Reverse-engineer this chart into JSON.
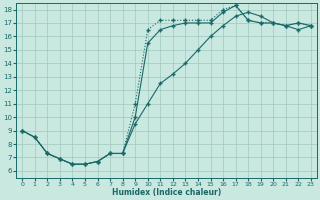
{
  "xlabel": "Humidex (Indice chaleur)",
  "bg_color": "#c8e8e0",
  "grid_color": "#a0c8c0",
  "line_color": "#1a6868",
  "xlim": [
    -0.5,
    23.5
  ],
  "ylim": [
    5.5,
    18.5
  ],
  "xticks": [
    0,
    1,
    2,
    3,
    4,
    5,
    6,
    7,
    8,
    9,
    10,
    11,
    12,
    13,
    14,
    15,
    16,
    17,
    18,
    19,
    20,
    21,
    22,
    23
  ],
  "yticks": [
    6,
    7,
    8,
    9,
    10,
    11,
    12,
    13,
    14,
    15,
    16,
    17,
    18
  ],
  "line1_x": [
    0,
    1,
    2,
    3,
    4,
    5,
    6,
    7,
    8,
    9,
    10,
    11,
    12,
    13,
    14,
    15,
    16,
    17,
    18,
    19,
    20,
    21,
    22,
    23
  ],
  "line1_y": [
    9.0,
    8.5,
    7.3,
    6.9,
    6.5,
    6.5,
    6.7,
    7.3,
    7.3,
    11.0,
    16.5,
    17.2,
    17.2,
    17.2,
    17.2,
    17.2,
    18.0,
    18.3,
    17.2,
    17.0,
    17.0,
    16.8,
    17.0,
    16.8
  ],
  "line2_x": [
    0,
    1,
    2,
    3,
    4,
    5,
    6,
    7,
    8,
    9,
    10,
    11,
    12,
    13,
    14,
    15,
    16,
    17,
    18,
    19,
    20,
    21,
    22,
    23
  ],
  "line2_y": [
    9.0,
    8.5,
    7.3,
    6.9,
    6.5,
    6.5,
    6.7,
    7.3,
    7.3,
    9.5,
    11.0,
    12.5,
    13.2,
    14.0,
    15.0,
    16.0,
    16.8,
    17.5,
    17.8,
    17.5,
    17.0,
    16.8,
    16.5,
    16.8
  ],
  "line3_x": [
    0,
    1,
    2,
    3,
    4,
    5,
    6,
    7,
    8,
    9,
    10,
    11,
    12,
    13,
    14,
    15,
    16,
    17,
    18,
    19,
    20,
    21,
    22,
    23
  ],
  "line3_y": [
    9.0,
    8.5,
    7.3,
    6.9,
    6.5,
    6.5,
    6.7,
    7.3,
    7.3,
    10.0,
    15.5,
    16.5,
    16.8,
    17.0,
    17.0,
    17.0,
    17.8,
    18.3,
    17.2,
    17.0,
    17.0,
    16.8,
    17.0,
    16.8
  ]
}
